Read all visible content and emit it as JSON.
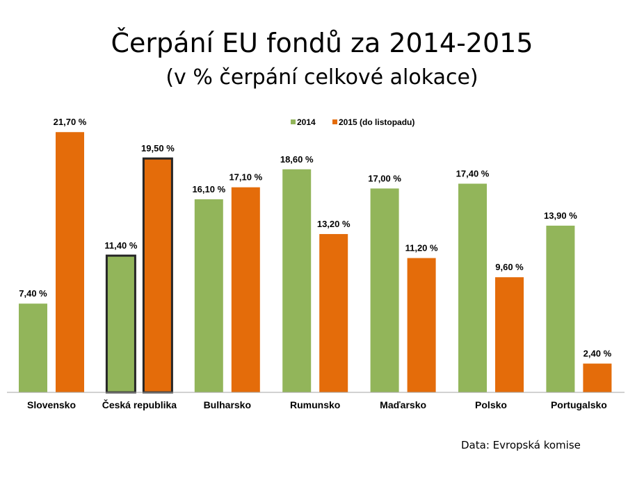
{
  "title": "Čerpání EU fondů za 2014-2015",
  "subtitle": "(v % čerpání celkové alokace)",
  "source": "Data: Evropská komise",
  "colors": {
    "s2014": "#92b55a",
    "s2015": "#e46c0a",
    "highlight_border": "#262626"
  },
  "chart_data": {
    "type": "bar",
    "title": "Čerpání EU fondů za 2014-2015",
    "subtitle": "(v % čerpání celkové alokace)",
    "categories": [
      "Slovensko",
      "Česká republika",
      "Bulharsko",
      "Rumunsko",
      "Maďarsko",
      "Polsko",
      "Portugalsko"
    ],
    "series": [
      {
        "name": "2014",
        "values": [
          7.4,
          11.4,
          16.1,
          18.6,
          17.0,
          17.4,
          13.9
        ],
        "labels": [
          "7,40 %",
          "11,40 %",
          "16,10 %",
          "18,60 %",
          "17,00 %",
          "17,40 %",
          "13,90 %"
        ]
      },
      {
        "name": "2015 (do listopadu)",
        "values": [
          21.7,
          19.5,
          17.1,
          13.2,
          11.2,
          9.6,
          2.4
        ],
        "labels": [
          "21,70 %",
          "19,50 %",
          "17,10 %",
          "13,20 %",
          "11,20 %",
          "9,60 %",
          "2,40 %"
        ]
      }
    ],
    "highlighted_category": "Česká republika",
    "ylim": [
      0,
      22
    ],
    "legend": "top-center",
    "grid": false,
    "xlabel": "",
    "ylabel": ""
  }
}
